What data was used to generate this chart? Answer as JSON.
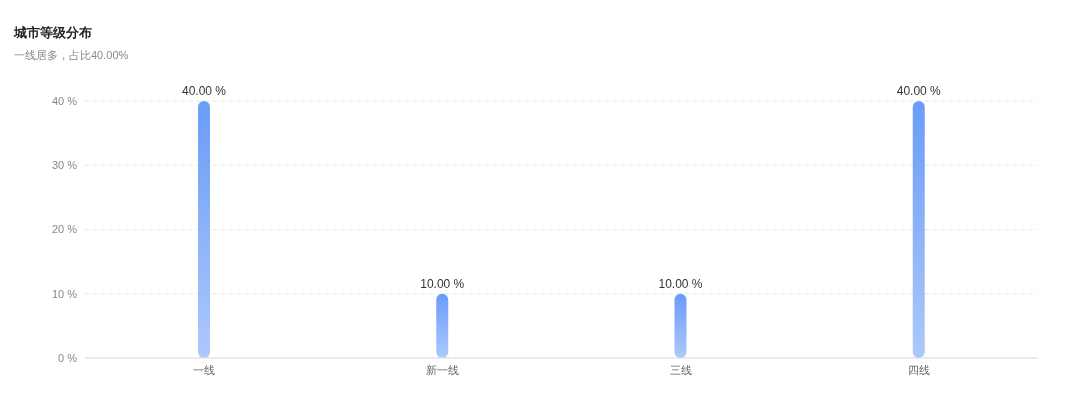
{
  "chart_data": {
    "type": "bar",
    "title": "城市等级分布",
    "subtitle": "一线居多，占比40.00%",
    "categories": [
      "一线",
      "新一线",
      "三线",
      "四线"
    ],
    "values": [
      40,
      10,
      10,
      40
    ],
    "value_labels": [
      "40.00 %",
      "10.00 %",
      "10.00 %",
      "40.00 %"
    ],
    "color": "#6a9cf8",
    "ylim": [
      0,
      40
    ],
    "yticks": [
      {
        "value": 0,
        "label": "0 %"
      },
      {
        "value": 10,
        "label": "10 %"
      },
      {
        "value": 20,
        "label": "20 %"
      },
      {
        "value": 30,
        "label": "30 %"
      },
      {
        "value": 40,
        "label": "40 %"
      }
    ],
    "grid": "y",
    "legend": false
  }
}
